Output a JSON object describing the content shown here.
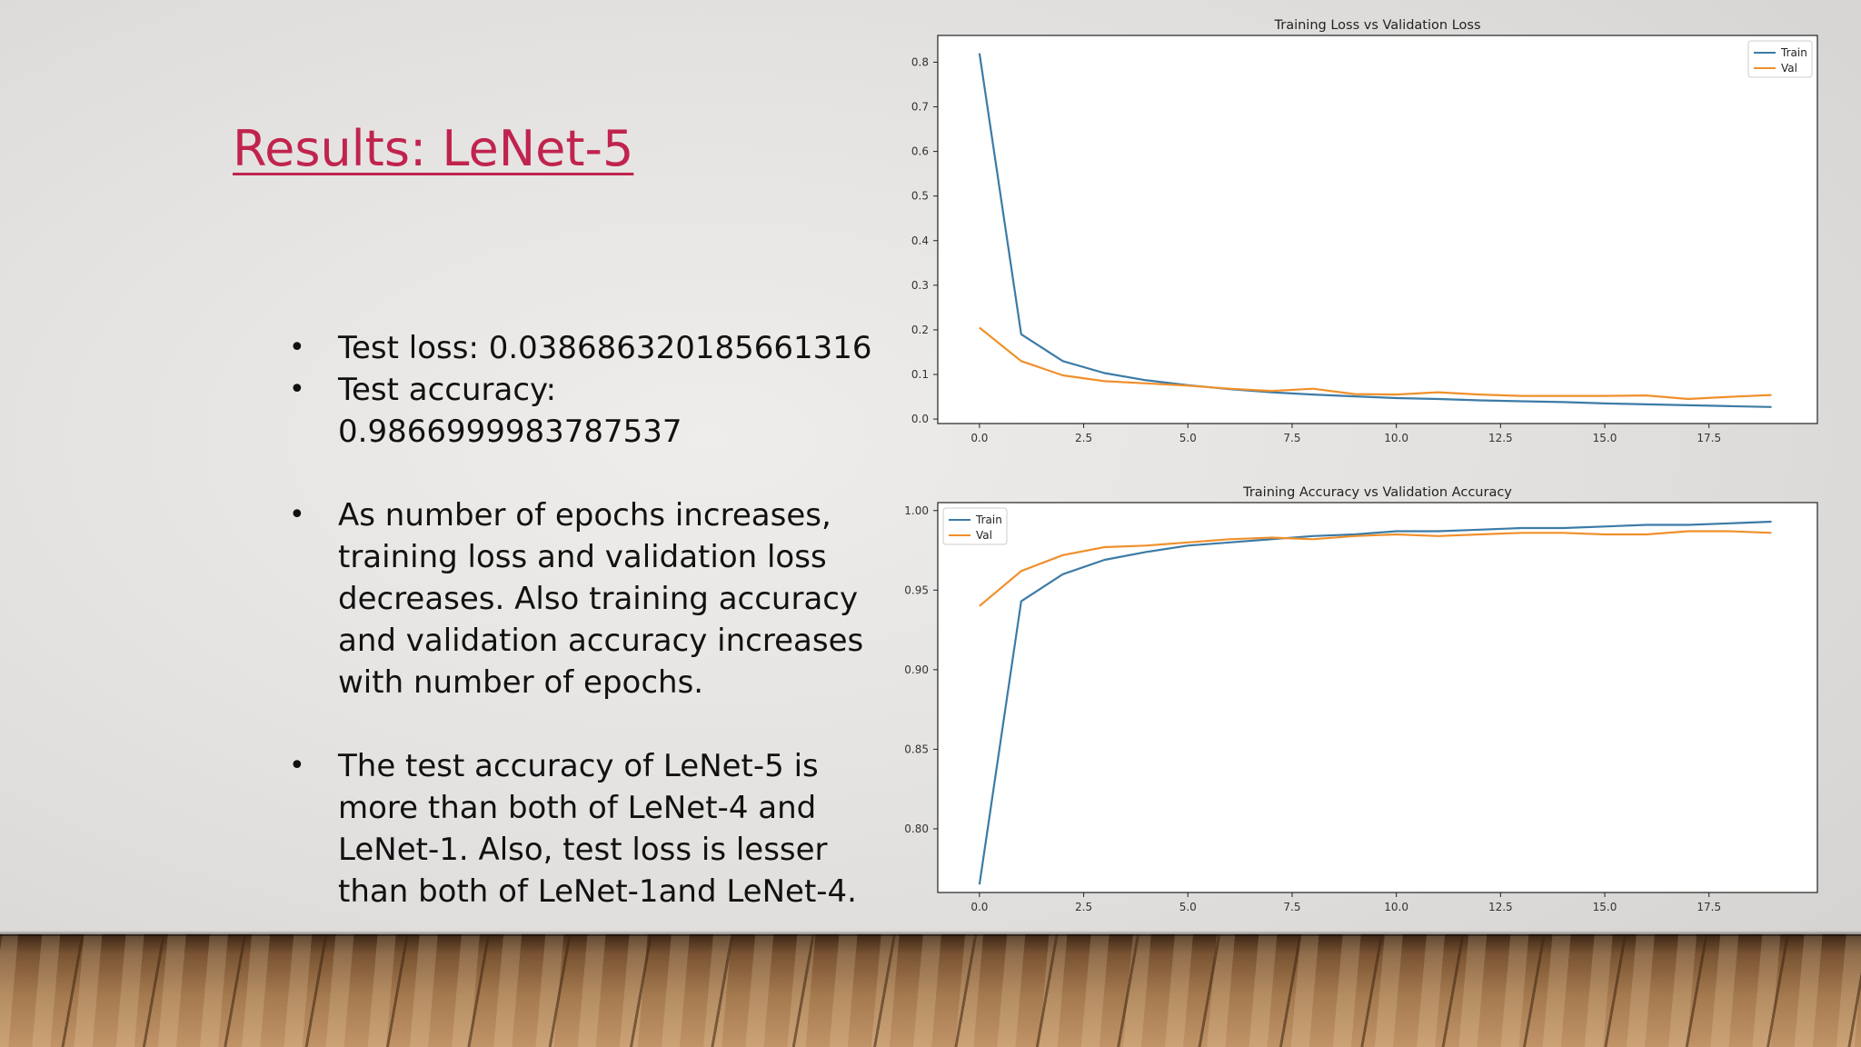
{
  "slide": {
    "title": "Results: LeNet-5",
    "bullets": [
      {
        "text": "Test loss: 0.03868632018566131​6",
        "gap": false
      },
      {
        "text": "Test accuracy: 0.9866999983787537",
        "gap": false
      },
      {
        "text": "As number of epochs increases, training loss and validation loss decreases. Also training accuracy and validation accuracy increases with number of epochs.",
        "gap": true
      },
      {
        "text": "The test accuracy of LeNet-5 is more than both of LeNet-4 and LeNet-1. Also, test loss is lesser than both of LeNet-1and LeNet-4.",
        "gap": true
      }
    ]
  },
  "colors": {
    "train": "#3c7ba6",
    "val": "#f0902c",
    "title": "#c0244e"
  },
  "chart_data": [
    {
      "type": "line",
      "title": "Training Loss vs Validation Loss",
      "xlabel": "",
      "ylabel": "",
      "x": [
        0,
        1,
        2,
        3,
        4,
        5,
        6,
        7,
        8,
        9,
        10,
        11,
        12,
        13,
        14,
        15,
        16,
        17,
        18,
        19
      ],
      "series": [
        {
          "name": "Train",
          "values": [
            0.82,
            0.19,
            0.13,
            0.103,
            0.087,
            0.076,
            0.067,
            0.06,
            0.055,
            0.051,
            0.047,
            0.045,
            0.042,
            0.04,
            0.038,
            0.035,
            0.033,
            0.031,
            0.029,
            0.027
          ]
        },
        {
          "name": "Val",
          "values": [
            0.205,
            0.13,
            0.098,
            0.085,
            0.08,
            0.075,
            0.068,
            0.063,
            0.068,
            0.056,
            0.055,
            0.06,
            0.055,
            0.052,
            0.052,
            0.052,
            0.053,
            0.045,
            0.05,
            0.054
          ]
        }
      ],
      "xlim": [
        -1,
        20.1
      ],
      "ylim": [
        -0.01,
        0.86
      ],
      "xticks": [
        0.0,
        2.5,
        5.0,
        7.5,
        10.0,
        12.5,
        15.0,
        17.5
      ],
      "xtick_labels": [
        "0.0",
        "2.5",
        "5.0",
        "7.5",
        "10.0",
        "12.5",
        "15.0",
        "17.5"
      ],
      "yticks": [
        0.0,
        0.1,
        0.2,
        0.3,
        0.4,
        0.5,
        0.6,
        0.7,
        0.8
      ],
      "ytick_labels": [
        "0.0",
        "0.1",
        "0.2",
        "0.3",
        "0.4",
        "0.5",
        "0.6",
        "0.7",
        "0.8"
      ],
      "legend": "top-right",
      "grid": false
    },
    {
      "type": "line",
      "title": "Training Accuracy vs Validation Accuracy",
      "xlabel": "",
      "ylabel": "",
      "x": [
        0,
        1,
        2,
        3,
        4,
        5,
        6,
        7,
        8,
        9,
        10,
        11,
        12,
        13,
        14,
        15,
        16,
        17,
        18,
        19
      ],
      "series": [
        {
          "name": "Train",
          "values": [
            0.765,
            0.943,
            0.96,
            0.969,
            0.974,
            0.978,
            0.98,
            0.982,
            0.984,
            0.985,
            0.987,
            0.987,
            0.988,
            0.989,
            0.989,
            0.99,
            0.991,
            0.991,
            0.992,
            0.993
          ]
        },
        {
          "name": "Val",
          "values": [
            0.94,
            0.962,
            0.972,
            0.977,
            0.978,
            0.98,
            0.982,
            0.983,
            0.982,
            0.984,
            0.985,
            0.984,
            0.985,
            0.986,
            0.986,
            0.985,
            0.985,
            0.987,
            0.987,
            0.986
          ]
        }
      ],
      "xlim": [
        -1,
        20.1
      ],
      "ylim": [
        0.76,
        1.005
      ],
      "xticks": [
        0.0,
        2.5,
        5.0,
        7.5,
        10.0,
        12.5,
        15.0,
        17.5
      ],
      "xtick_labels": [
        "0.0",
        "2.5",
        "5.0",
        "7.5",
        "10.0",
        "12.5",
        "15.0",
        "17.5"
      ],
      "yticks": [
        0.8,
        0.85,
        0.9,
        0.95,
        1.0
      ],
      "ytick_labels": [
        "0.80",
        "0.85",
        "0.90",
        "0.95",
        "1.00"
      ],
      "legend": "top-left",
      "grid": false
    }
  ]
}
